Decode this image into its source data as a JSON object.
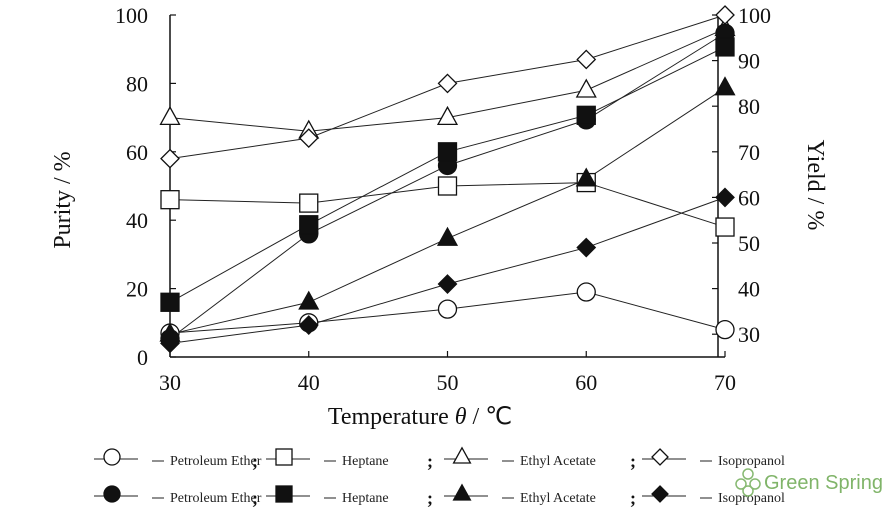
{
  "chart_data": {
    "type": "line",
    "xlabel_prefix": "Temperature ",
    "xlabel_var": "θ",
    "xlabel_unit": " / ℃",
    "ylabel_left": "Purity / %",
    "ylabel_right": "Yield / %",
    "x_ticks": [
      30,
      40,
      50,
      60,
      70
    ],
    "y_left_ticks": [
      0,
      20,
      40,
      60,
      80,
      100
    ],
    "y_right_ticks": [
      30,
      40,
      50,
      60,
      70,
      80,
      90,
      100
    ],
    "xlim": [
      30,
      70
    ],
    "ylim_left": [
      0,
      100
    ],
    "ylim_right": [
      25,
      100
    ],
    "grid": false,
    "legend_position": "bottom",
    "x": [
      30,
      40,
      50,
      60,
      70
    ],
    "series": [
      {
        "legend_label": "Petroleum Ether",
        "marker": "circle-open",
        "axis": "left",
        "values": [
          7,
          10,
          14,
          19,
          8
        ]
      },
      {
        "legend_label": "Heptane",
        "marker": "square-open",
        "axis": "left",
        "values": [
          46,
          45,
          50,
          51,
          38
        ]
      },
      {
        "legend_label": "Ethyl Acetate",
        "marker": "triangle-open",
        "axis": "left",
        "values": [
          70,
          66,
          70,
          78,
          96
        ]
      },
      {
        "legend_label": "Isopropanol",
        "marker": "diamond-open",
        "axis": "left",
        "values": [
          58,
          64,
          80,
          87,
          100
        ]
      },
      {
        "legend_label": "Petroleum Ether",
        "marker": "circle-filled",
        "axis": "right",
        "values": [
          29,
          52,
          67,
          77,
          96
        ]
      },
      {
        "legend_label": "Heptane",
        "marker": "square-filled",
        "axis": "right",
        "values": [
          37,
          54,
          70,
          78,
          93
        ]
      },
      {
        "legend_label": "Ethyl Acetate",
        "marker": "triangle-filled",
        "axis": "right",
        "values": [
          30,
          37,
          51,
          64,
          84
        ]
      },
      {
        "legend_label": "Isopropanol",
        "marker": "diamond-filled",
        "axis": "right",
        "values": [
          28,
          32,
          41,
          49,
          60
        ]
      }
    ]
  },
  "legend_separator": ";",
  "watermark": {
    "text": "Green Spring",
    "icon": "leaf-logo-icon",
    "color": "#6aa84f"
  }
}
